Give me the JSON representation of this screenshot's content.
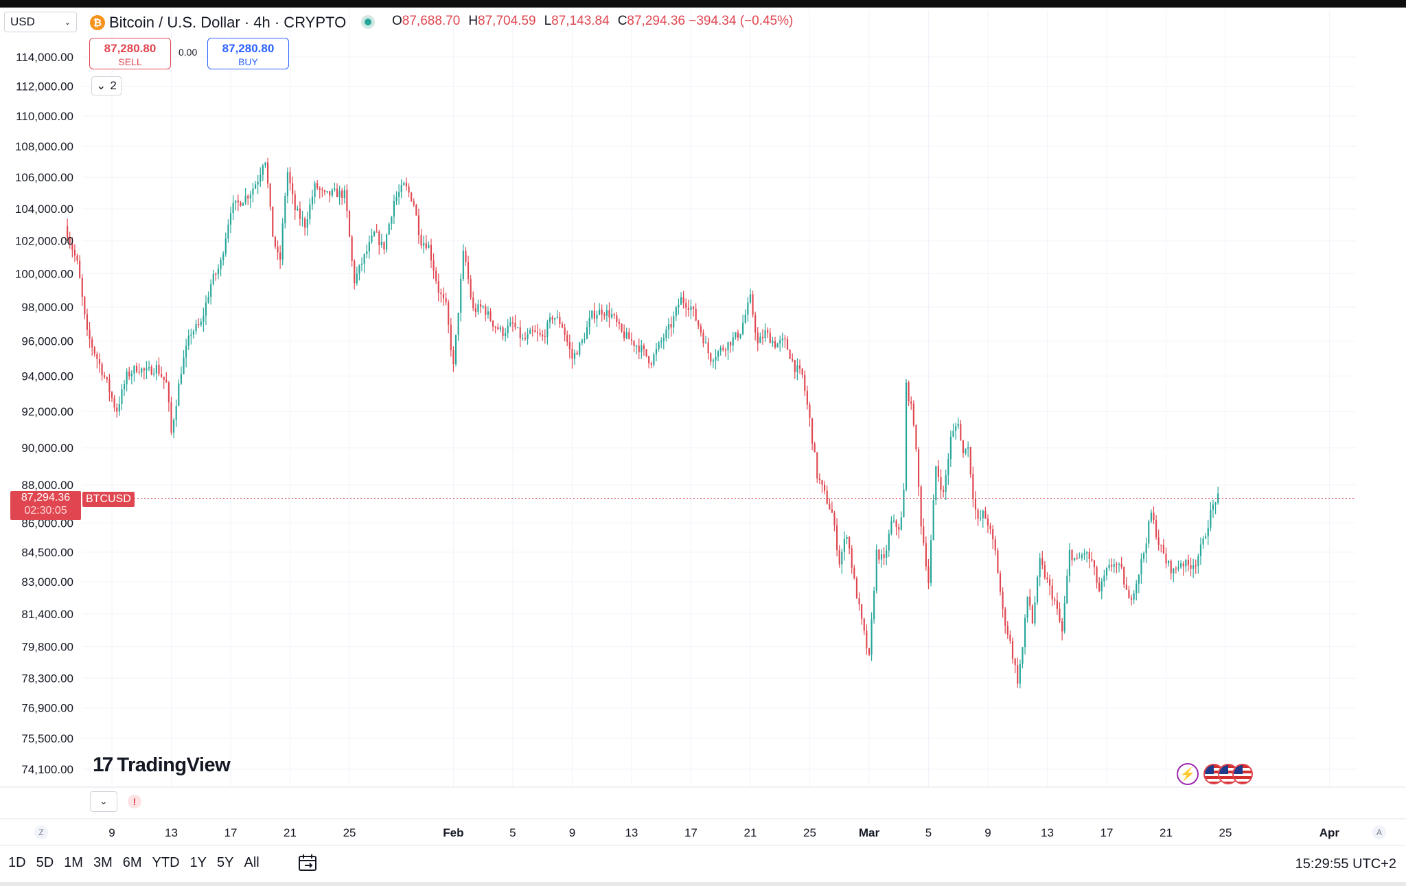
{
  "header": {
    "currency": "USD",
    "symbol_title": "Bitcoin / U.S. Dollar · 4h · CRYPTO",
    "ohlc": [
      {
        "k": "O",
        "v": "87,688.70"
      },
      {
        "k": "H",
        "v": "87,704.59"
      },
      {
        "k": "L",
        "v": "87,143.84"
      },
      {
        "k": "C",
        "v": "87,294.36 −394.34 (−0.45%)"
      }
    ]
  },
  "trade": {
    "sell_price": "87,280.80",
    "sell_label": "SELL",
    "spread": "0.00",
    "buy_price": "87,280.80",
    "buy_label": "BUY"
  },
  "indicators_count": "2",
  "price_label": {
    "price": "87,294.36",
    "countdown": "02:30:05",
    "symbol": "BTCUSD"
  },
  "logo": {
    "text": "TradingView"
  },
  "timeaxis": {
    "left_button": "Z",
    "right_button": "A"
  },
  "ranges": [
    "1D",
    "5D",
    "1M",
    "3M",
    "6M",
    "YTD",
    "1Y",
    "5Y",
    "All"
  ],
  "clock": "15:29:55 UTC+2",
  "colors": {
    "up": "#26a69a",
    "down": "#e0464f"
  },
  "chart_data": {
    "type": "candlestick",
    "interval": "4h",
    "symbol": "BTCUSD",
    "last_price": 87294.36,
    "y_ticks": [
      114000,
      112000,
      110000,
      108000,
      106000,
      104000,
      102000,
      100000,
      98000,
      96000,
      94000,
      92000,
      90000,
      88000,
      86000,
      84500,
      83000,
      81400,
      79800,
      78300,
      76900,
      75500,
      74100
    ],
    "y_tick_labels": [
      "114,000.00",
      "112,000.00",
      "110,000.00",
      "108,000.00",
      "106,000.00",
      "104,000.00",
      "102,000.00",
      "100,000.00",
      "98,000.00",
      "96,000.00",
      "94,000.00",
      "92,000.00",
      "90,000.00",
      "88,000.00",
      "86,000.00",
      "84,500.00",
      "83,000.00",
      "81,400.00",
      "79,800.00",
      "78,300.00",
      "76,900.00",
      "75,500.00",
      "74,100.00"
    ],
    "scale": "log",
    "x_start_day": 6,
    "x_end_day": 84.7,
    "x_ticks": [
      {
        "day": 9,
        "label": "9"
      },
      {
        "day": 13,
        "label": "13"
      },
      {
        "day": 17,
        "label": "17"
      },
      {
        "day": 21,
        "label": "21"
      },
      {
        "day": 25,
        "label": "25"
      },
      {
        "day": 32,
        "label": "Feb",
        "bold": true
      },
      {
        "day": 36,
        "label": "5"
      },
      {
        "day": 40,
        "label": "9"
      },
      {
        "day": 44,
        "label": "13"
      },
      {
        "day": 48,
        "label": "17"
      },
      {
        "day": 52,
        "label": "21"
      },
      {
        "day": 56,
        "label": "25"
      },
      {
        "day": 60,
        "label": "Mar",
        "bold": true
      },
      {
        "day": 64,
        "label": "5"
      },
      {
        "day": 68,
        "label": "9"
      },
      {
        "day": 72,
        "label": "13"
      },
      {
        "day": 76,
        "label": "17"
      },
      {
        "day": 80,
        "label": "21"
      },
      {
        "day": 84,
        "label": "25"
      },
      {
        "day": 91,
        "label": "Apr",
        "bold": true
      }
    ],
    "close_anchors": [
      [
        6.0,
        102500
      ],
      [
        6.7,
        100500
      ],
      [
        7.3,
        96500
      ],
      [
        8.0,
        95000
      ],
      [
        8.7,
        93500
      ],
      [
        9.3,
        92000
      ],
      [
        10.0,
        94000
      ],
      [
        10.7,
        94500
      ],
      [
        11.3,
        94200
      ],
      [
        12.0,
        94500
      ],
      [
        12.7,
        93500
      ],
      [
        13.0,
        90800
      ],
      [
        13.7,
        94500
      ],
      [
        14.3,
        96500
      ],
      [
        15.0,
        97000
      ],
      [
        15.7,
        99500
      ],
      [
        16.3,
        100500
      ],
      [
        17.0,
        104000
      ],
      [
        17.7,
        104500
      ],
      [
        18.3,
        105000
      ],
      [
        18.9,
        106000
      ],
      [
        19.3,
        107500
      ],
      [
        19.8,
        102500
      ],
      [
        20.3,
        100500
      ],
      [
        20.8,
        106500
      ],
      [
        21.3,
        104000
      ],
      [
        22.0,
        103000
      ],
      [
        22.7,
        105500
      ],
      [
        23.3,
        104800
      ],
      [
        24.0,
        105000
      ],
      [
        24.7,
        104900
      ],
      [
        25.3,
        99500
      ],
      [
        26.0,
        101000
      ],
      [
        26.7,
        102500
      ],
      [
        27.3,
        101500
      ],
      [
        28.0,
        104500
      ],
      [
        28.7,
        105500
      ],
      [
        29.3,
        104500
      ],
      [
        29.8,
        102000
      ],
      [
        30.3,
        101800
      ],
      [
        31.0,
        99000
      ],
      [
        31.5,
        98000
      ],
      [
        32.0,
        94500
      ],
      [
        32.7,
        101500
      ],
      [
        33.3,
        97800
      ],
      [
        34.0,
        98000
      ],
      [
        34.7,
        97000
      ],
      [
        35.3,
        96500
      ],
      [
        36.0,
        97000
      ],
      [
        36.7,
        96000
      ],
      [
        37.3,
        96500
      ],
      [
        38.0,
        96200
      ],
      [
        38.7,
        97500
      ],
      [
        39.3,
        97000
      ],
      [
        40.0,
        95000
      ],
      [
        40.7,
        96000
      ],
      [
        41.3,
        97500
      ],
      [
        42.0,
        97800
      ],
      [
        42.7,
        97500
      ],
      [
        43.3,
        96500
      ],
      [
        44.0,
        96000
      ],
      [
        44.7,
        95500
      ],
      [
        45.3,
        94800
      ],
      [
        46.0,
        96000
      ],
      [
        46.7,
        97000
      ],
      [
        47.3,
        98500
      ],
      [
        48.0,
        98000
      ],
      [
        48.7,
        96500
      ],
      [
        49.3,
        95000
      ],
      [
        50.0,
        95500
      ],
      [
        50.7,
        96000
      ],
      [
        51.3,
        96500
      ],
      [
        52.0,
        98500
      ],
      [
        52.5,
        95800
      ],
      [
        53.0,
        96500
      ],
      [
        53.7,
        95800
      ],
      [
        54.3,
        96000
      ],
      [
        55.0,
        94500
      ],
      [
        55.5,
        94000
      ],
      [
        56.0,
        91500
      ],
      [
        56.5,
        88500
      ],
      [
        57.0,
        87500
      ],
      [
        57.5,
        86500
      ],
      [
        58.0,
        84000
      ],
      [
        58.5,
        85500
      ],
      [
        59.0,
        83000
      ],
      [
        59.5,
        81000
      ],
      [
        60.0,
        79200
      ],
      [
        60.5,
        84500
      ],
      [
        61.0,
        84000
      ],
      [
        61.5,
        86000
      ],
      [
        62.0,
        85800
      ],
      [
        62.3,
        86500
      ],
      [
        62.5,
        93500
      ],
      [
        63.0,
        91500
      ],
      [
        63.5,
        86000
      ],
      [
        64.0,
        83000
      ],
      [
        64.5,
        89000
      ],
      [
        65.0,
        87500
      ],
      [
        65.5,
        90500
      ],
      [
        66.0,
        91500
      ],
      [
        66.3,
        89500
      ],
      [
        66.6,
        90500
      ],
      [
        67.0,
        87500
      ],
      [
        67.3,
        86000
      ],
      [
        67.7,
        86500
      ],
      [
        68.0,
        86000
      ],
      [
        68.5,
        84500
      ],
      [
        69.0,
        81500
      ],
      [
        69.5,
        80000
      ],
      [
        70.0,
        78200
      ],
      [
        70.3,
        79500
      ],
      [
        70.7,
        82500
      ],
      [
        71.0,
        81000
      ],
      [
        71.5,
        84000
      ],
      [
        72.0,
        83000
      ],
      [
        72.5,
        82000
      ],
      [
        73.0,
        80500
      ],
      [
        73.5,
        84500
      ],
      [
        74.0,
        84000
      ],
      [
        74.5,
        84500
      ],
      [
        75.0,
        84000
      ],
      [
        75.5,
        82500
      ],
      [
        76.0,
        83500
      ],
      [
        76.5,
        84000
      ],
      [
        77.0,
        83500
      ],
      [
        77.5,
        82000
      ],
      [
        78.0,
        83000
      ],
      [
        78.5,
        84500
      ],
      [
        79.0,
        86500
      ],
      [
        79.5,
        85000
      ],
      [
        80.0,
        84000
      ],
      [
        80.5,
        83500
      ],
      [
        81.0,
        84000
      ],
      [
        81.5,
        83800
      ],
      [
        82.0,
        84000
      ],
      [
        82.5,
        85000
      ],
      [
        83.0,
        86500
      ],
      [
        83.3,
        87200
      ],
      [
        83.5,
        87300
      ]
    ]
  }
}
